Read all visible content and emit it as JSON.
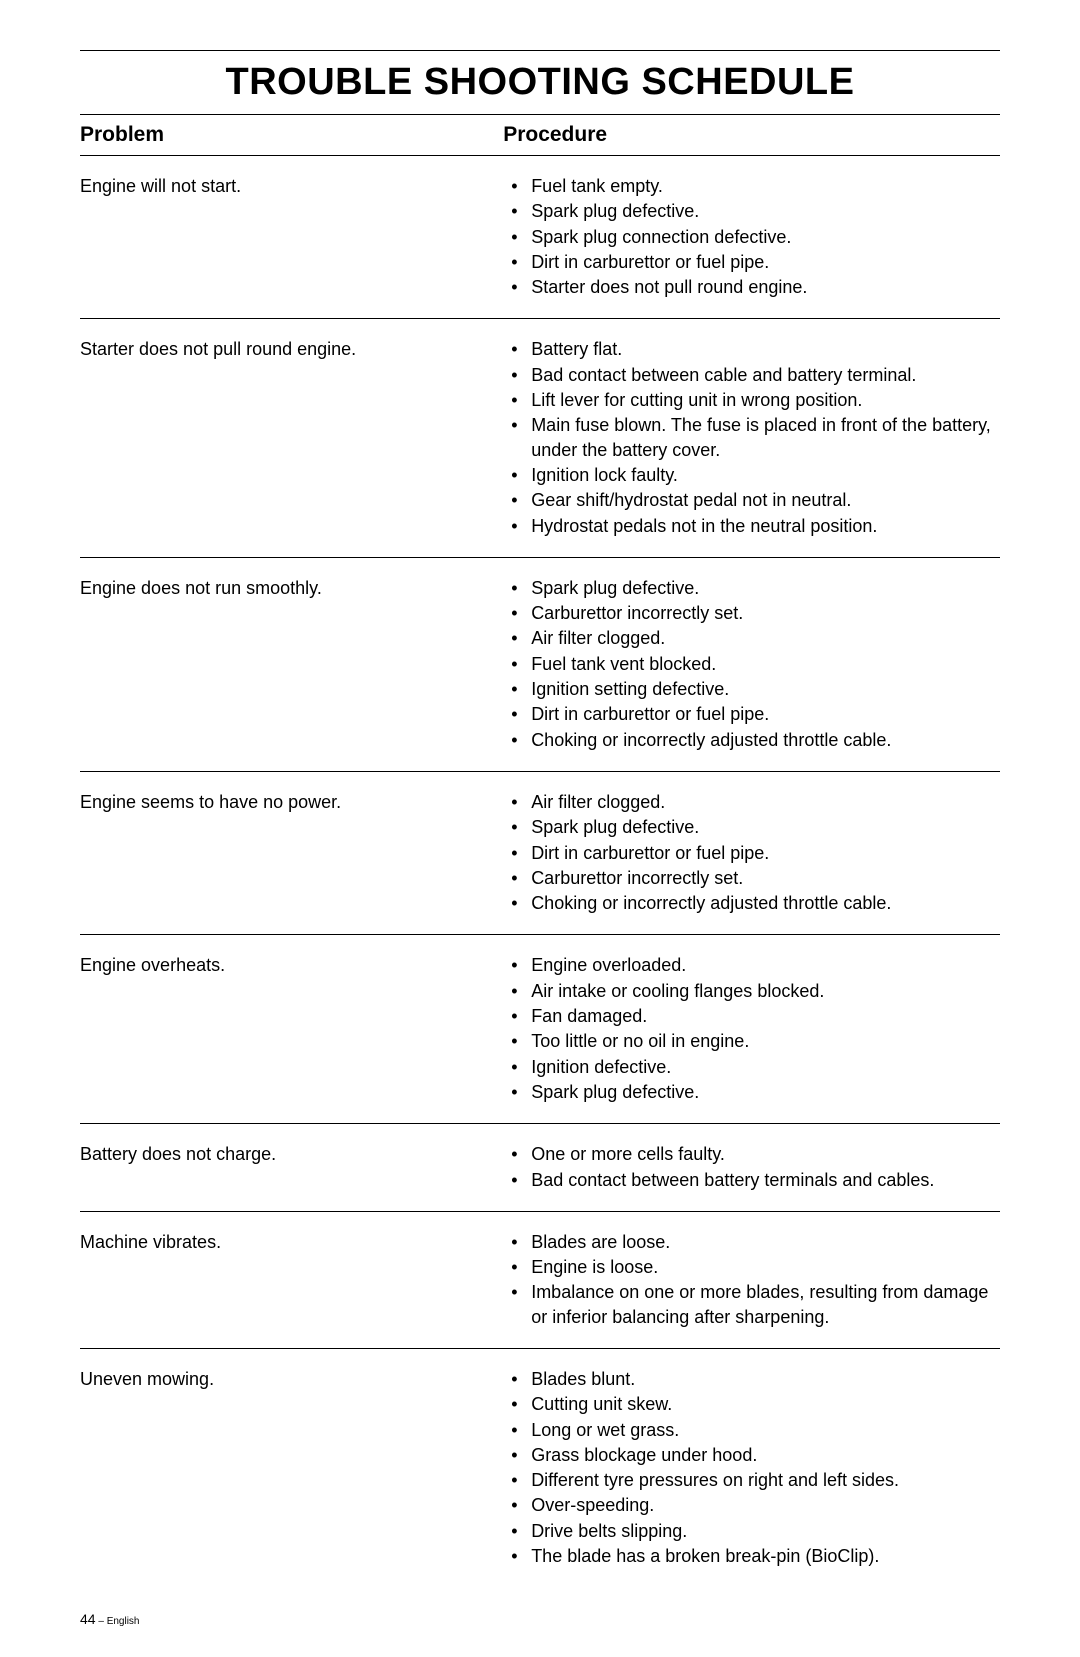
{
  "page_title": "TROUBLE SHOOTING SCHEDULE",
  "headers": {
    "problem": "Problem",
    "procedure": "Procedure"
  },
  "rows": [
    {
      "problem": "Engine will not start.",
      "items": [
        "Fuel tank empty.",
        "Spark plug defective.",
        "Spark plug connection defective.",
        "Dirt in carburettor or fuel pipe.",
        "Starter does not pull round engine."
      ]
    },
    {
      "problem": "Starter does not pull round engine.",
      "items": [
        "Battery flat.",
        "Bad contact between cable and battery terminal.",
        "Lift lever for cutting unit in wrong position.",
        "Main fuse blown. The fuse is placed in front of the battery, under the battery cover.",
        "Ignition lock faulty.",
        "Gear shift/hydrostat pedal not in neutral.",
        "Hydrostat pedals not in the neutral position."
      ]
    },
    {
      "problem": "Engine does not run smoothly.",
      "items": [
        "Spark plug defective.",
        "Carburettor incorrectly set.",
        "Air filter clogged.",
        "Fuel tank vent blocked.",
        "Ignition setting defective.",
        "Dirt in carburettor or fuel pipe.",
        "Choking or incorrectly adjusted throttle cable."
      ]
    },
    {
      "problem": "Engine seems to have no power.",
      "items": [
        "Air filter clogged.",
        "Spark plug defective.",
        "Dirt in carburettor or fuel pipe.",
        "Carburettor incorrectly set.",
        "Choking or incorrectly adjusted throttle cable."
      ]
    },
    {
      "problem": "Engine overheats.",
      "items": [
        "Engine overloaded.",
        "Air intake or cooling flanges blocked.",
        "Fan damaged.",
        "Too little or no oil in engine.",
        "Ignition defective.",
        "Spark plug defective."
      ]
    },
    {
      "problem": "Battery does not charge.",
      "items": [
        "One or more cells faulty.",
        "Bad contact between battery terminals and cables."
      ]
    },
    {
      "problem": "Machine vibrates.",
      "items": [
        "Blades are loose.",
        "Engine is loose.",
        "Imbalance on one or more blades, resulting from damage or inferior balancing after sharpening."
      ]
    },
    {
      "problem": "Uneven mowing.",
      "items": [
        "Blades blunt.",
        "Cutting unit skew.",
        "Long or wet grass.",
        "Grass blockage under hood.",
        "Different tyre pressures on right and left sides.",
        "Over-speeding.",
        "Drive belts slipping.",
        "The blade has a broken break-pin (BioClip)."
      ]
    }
  ],
  "footer": {
    "page_number": "44",
    "lang": " – English"
  },
  "style": {
    "background_color": "#ffffff",
    "text_color": "#000000",
    "rule_color": "#000000",
    "title_fontsize": 38,
    "header_fontsize": 21,
    "body_fontsize": 18,
    "footer_fontsize": 14
  }
}
